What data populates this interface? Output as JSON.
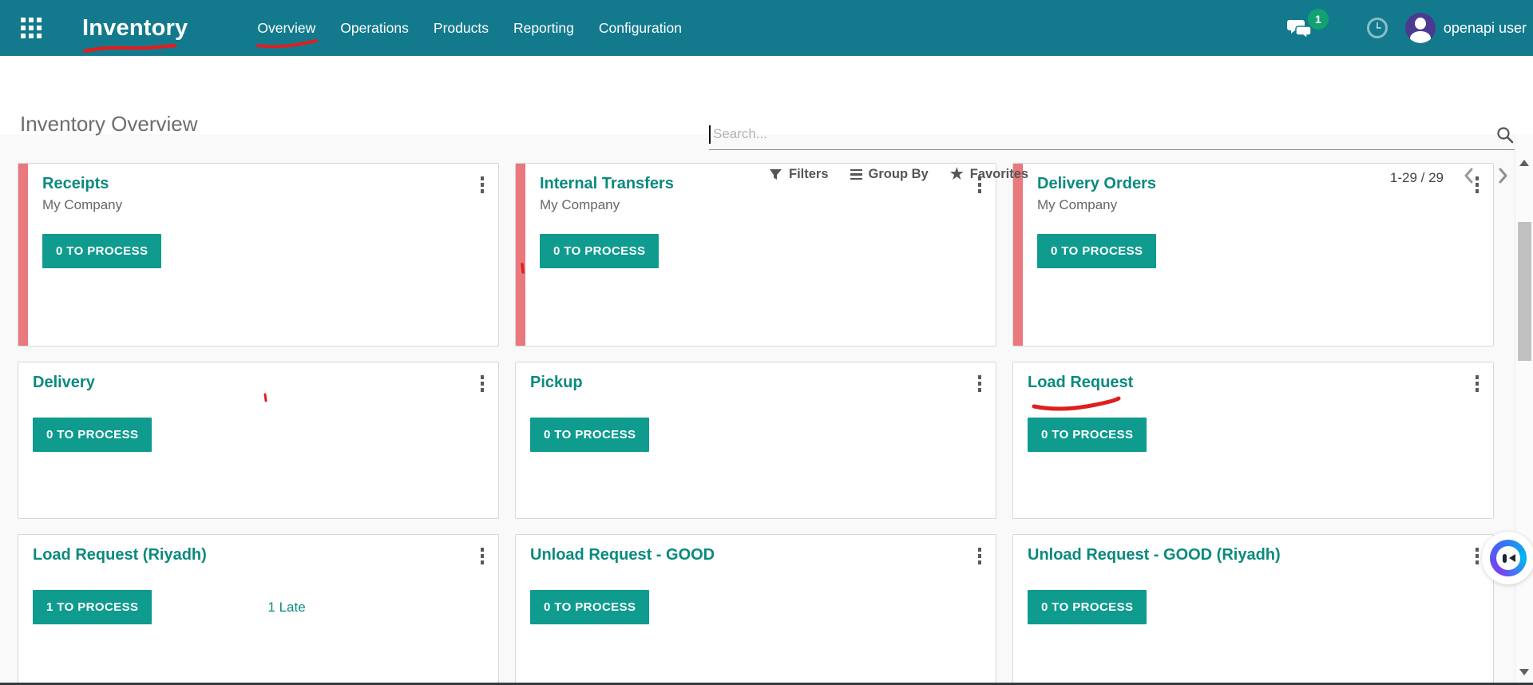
{
  "navbar": {
    "app_title": "Inventory",
    "menu": [
      {
        "label": "Overview",
        "active": true
      },
      {
        "label": "Operations",
        "active": false
      },
      {
        "label": "Products",
        "active": false
      },
      {
        "label": "Reporting",
        "active": false
      },
      {
        "label": "Configuration",
        "active": false
      }
    ],
    "messages_badge": "1",
    "user_name": "openapi user"
  },
  "control_panel": {
    "breadcrumb_title": "Inventory Overview",
    "search_placeholder": "Search...",
    "filters_label": "Filters",
    "group_by_label": "Group By",
    "favorites_label": "Favorites",
    "pager_range": "1-29 / 29"
  },
  "cards": [
    {
      "title": "Receipts",
      "subtitle": "My Company",
      "button_label": "0 TO PROCESS",
      "accent": true
    },
    {
      "title": "Internal Transfers",
      "subtitle": "My Company",
      "button_label": "0 TO PROCESS",
      "accent": true
    },
    {
      "title": "Delivery Orders",
      "subtitle": "My Company",
      "button_label": "0 TO PROCESS",
      "accent": true
    },
    {
      "title": "Delivery",
      "subtitle": "",
      "button_label": "0 TO PROCESS",
      "accent": false
    },
    {
      "title": "Pickup",
      "subtitle": "",
      "button_label": "0 TO PROCESS",
      "accent": false
    },
    {
      "title": "Load Request",
      "subtitle": "",
      "button_label": "0 TO PROCESS",
      "accent": false
    },
    {
      "title": "Load Request (Riyadh)",
      "subtitle": "",
      "button_label": "1 TO PROCESS",
      "accent": false,
      "late_label": "1 Late"
    },
    {
      "title": "Unload Request - GOOD",
      "subtitle": "",
      "button_label": "0 TO PROCESS",
      "accent": false
    },
    {
      "title": "Unload Request - GOOD (Riyadh)",
      "subtitle": "",
      "button_label": "0 TO PROCESS",
      "accent": false
    }
  ],
  "colors": {
    "navbar_teal": "#137a8e",
    "link_teal": "#0a8a7e",
    "button_teal": "#0f9b8e",
    "stripe_red": "#e9797c",
    "badge_green": "#12a170",
    "avatar_purple": "#4b3a8f",
    "annotation_red": "#de1f1f"
  }
}
